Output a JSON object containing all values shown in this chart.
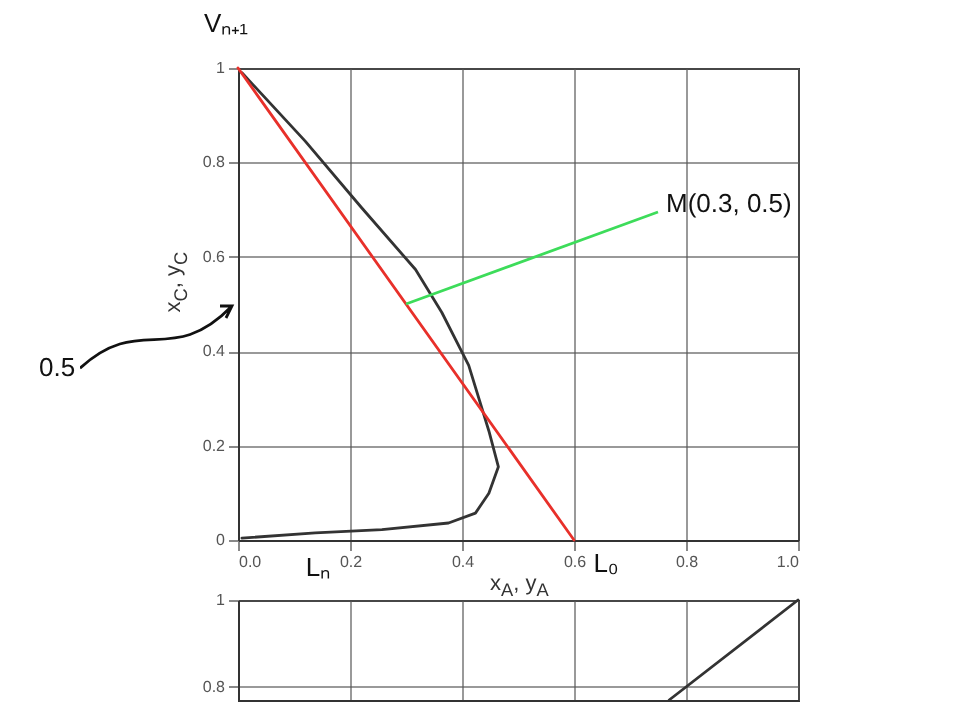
{
  "chart_data": [
    {
      "type": "line",
      "xlabel": "x$_{A}$, y$_{A}$",
      "ylabel": "x$_{C}$, y$_{C}$",
      "xlim": [
        0,
        1
      ],
      "ylim": [
        0,
        1
      ],
      "xticks": [
        {
          "value": 0,
          "label": "0.0"
        },
        0.2,
        0.4,
        0.6,
        0.8,
        {
          "value": 1,
          "label": "1.0"
        }
      ],
      "yticks": [
        0,
        0.2,
        0.4,
        0.6,
        0.8,
        1
      ],
      "grid": true,
      "line_style": "solid",
      "series": [
        {
          "color": "#333333",
          "x": [
            0.007,
            0.12,
            0.22,
            0.317,
            0.364,
            0.412,
            0.448,
            0.465,
            0.448,
            0.424,
            0.376,
            0.257,
            0.138,
            0.007
          ],
          "values": [
            0.99,
            0.845,
            0.705,
            0.573,
            0.482,
            0.37,
            0.231,
            0.155,
            0.099,
            0.057,
            0.036,
            0.022,
            0.015,
            0.004
          ]
        },
        {
          "color": "#e8302a",
          "x": [
            0,
            0.6
          ],
          "values": [
            1,
            0
          ]
        }
      ],
      "annotations": [
        {
          "text": "Vₙ₊₁",
          "x": 0,
          "y": 1
        },
        {
          "text": "Lₙ",
          "x": 0.1,
          "y": 0
        },
        {
          "text": "L₀",
          "x": 0.6,
          "y": 0
        },
        {
          "text": "M(0.3, 0.5)",
          "x": 0.3,
          "y": 0.5
        },
        "0.5"
      ]
    },
    {
      "type": "line",
      "xlim": [
        0,
        1
      ],
      "ylim": [
        0.77,
        1
      ],
      "xticks": [
        0,
        0.2,
        0.4,
        0.6,
        0.8,
        1
      ],
      "yticks": [
        0.8,
        1
      ],
      "grid": true,
      "tick_labels": "y",
      "line_style": "solid",
      "series": [
        {
          "color": "#333333",
          "x": [
            0.77,
            1
          ],
          "values": [
            0.77,
            1
          ]
        }
      ]
    }
  ]
}
